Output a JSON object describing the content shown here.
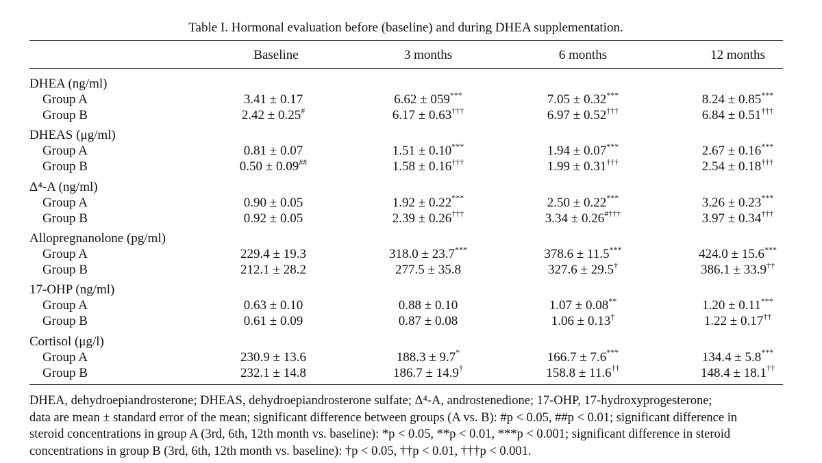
{
  "caption": "Table I. Hormonal evaluation before (baseline) and during DHEA supplementation.",
  "columns": [
    "Baseline",
    "3 months",
    "6 months",
    "12 months"
  ],
  "sections": [
    {
      "label": "DHEA (ng/ml)",
      "rows": [
        {
          "group": "Group A",
          "values": [
            {
              "v": "3.41 ± 0.17",
              "s": ""
            },
            {
              "v": "6.62 ± 059",
              "s": "***"
            },
            {
              "v": "7.05 ± 0.32",
              "s": "***"
            },
            {
              "v": "8.24 ± 0.85",
              "s": "***"
            }
          ]
        },
        {
          "group": "Group B",
          "values": [
            {
              "v": "2.42 ± 0.25",
              "s": "#"
            },
            {
              "v": "6.17 ± 0.63",
              "s": "†††"
            },
            {
              "v": "6.97 ± 0.52",
              "s": "†††"
            },
            {
              "v": "6.84 ± 0.51",
              "s": "†††"
            }
          ]
        }
      ]
    },
    {
      "label": "DHEAS (μg/ml)",
      "rows": [
        {
          "group": "Group A",
          "values": [
            {
              "v": "0.81 ± 0.07",
              "s": ""
            },
            {
              "v": "1.51 ± 0.10",
              "s": "***"
            },
            {
              "v": "1.94 ± 0.07",
              "s": "***"
            },
            {
              "v": "2.67 ± 0.16",
              "s": "***"
            }
          ]
        },
        {
          "group": "Group B",
          "values": [
            {
              "v": "0.50 ± 0.09",
              "s": "##"
            },
            {
              "v": "1.58 ± 0.16",
              "s": "†††"
            },
            {
              "v": "1.99 ± 0.31",
              "s": "†††"
            },
            {
              "v": "2.54 ± 0.18",
              "s": "†††"
            }
          ]
        }
      ]
    },
    {
      "label": "Δ⁴-A (ng/ml)",
      "rows": [
        {
          "group": "Group A",
          "values": [
            {
              "v": "0.90 ± 0.05",
              "s": ""
            },
            {
              "v": "1.92 ± 0.22",
              "s": "***"
            },
            {
              "v": "2.50 ± 0.22",
              "s": "***"
            },
            {
              "v": "3.26 ± 0.23",
              "s": "***"
            }
          ]
        },
        {
          "group": "Group B",
          "values": [
            {
              "v": "0.92 ± 0.05",
              "s": ""
            },
            {
              "v": "2.39 ± 0.26",
              "s": "†††"
            },
            {
              "v": "3.34 ± 0.26",
              "s": "#†††"
            },
            {
              "v": "3.97 ± 0.34",
              "s": "†††"
            }
          ]
        }
      ]
    },
    {
      "label": "Allopregnanolone (pg/ml)",
      "rows": [
        {
          "group": "Group A",
          "values": [
            {
              "v": "229.4 ± 19.3",
              "s": ""
            },
            {
              "v": "318.0 ± 23.7",
              "s": "***"
            },
            {
              "v": "378.6 ± 11.5",
              "s": "***"
            },
            {
              "v": "424.0 ± 15.6",
              "s": "***"
            }
          ]
        },
        {
          "group": "Group B",
          "values": [
            {
              "v": "212.1 ± 28.2",
              "s": ""
            },
            {
              "v": "277.5 ± 35.8",
              "s": ""
            },
            {
              "v": "327.6 ± 29.5",
              "s": "†"
            },
            {
              "v": "386.1 ± 33.9",
              "s": "††"
            }
          ]
        }
      ]
    },
    {
      "label": "17-OHP (ng/ml)",
      "rows": [
        {
          "group": "Group A",
          "values": [
            {
              "v": "0.63 ± 0.10",
              "s": ""
            },
            {
              "v": "0.88 ± 0.10",
              "s": ""
            },
            {
              "v": "1.07 ± 0.08",
              "s": "**"
            },
            {
              "v": "1.20 ± 0.11",
              "s": "***"
            }
          ]
        },
        {
          "group": "Group B",
          "values": [
            {
              "v": "0.61 ± 0.09",
              "s": ""
            },
            {
              "v": "0.87 ± 0.08",
              "s": ""
            },
            {
              "v": "1.06 ± 0.13",
              "s": "†"
            },
            {
              "v": "1.22 ± 0.17",
              "s": "††"
            }
          ]
        }
      ]
    },
    {
      "label": "Cortisol (μg/l)",
      "rows": [
        {
          "group": "Group A",
          "values": [
            {
              "v": "230.9 ± 13.6",
              "s": ""
            },
            {
              "v": "188.3 ± 9.7",
              "s": "*"
            },
            {
              "v": "166.7 ± 7.6",
              "s": "***"
            },
            {
              "v": "134.4 ± 5.8",
              "s": "***"
            }
          ]
        },
        {
          "group": "Group B",
          "values": [
            {
              "v": "232.1 ± 14.8",
              "s": ""
            },
            {
              "v": "186.7 ± 14.9",
              "s": "†"
            },
            {
              "v": "158.8 ± 11.6",
              "s": "††"
            },
            {
              "v": "148.4 ± 18.1",
              "s": "††"
            }
          ]
        }
      ]
    }
  ],
  "footnote": {
    "line1": "DHEA, dehydroepiandrosterone; DHEAS, dehydroepiandrosterone sulfate; Δ⁴-A, androstenedione; 17-OHP, 17-hydroxyprogesterone;",
    "line2": "data are mean ± standard error of the mean; significant difference between groups (A vs. B): #p < 0.05, ##p < 0.01; significant difference in",
    "line3": "steroid concentrations in group A (3rd, 6th, 12th month vs. baseline): *p < 0.05, **p < 0.01, ***p < 0.001; significant difference in steroid",
    "line4": "concentrations in group B (3rd, 6th, 12th month vs. baseline): †p < 0.05, ††p < 0.01, †††p < 0.001."
  }
}
